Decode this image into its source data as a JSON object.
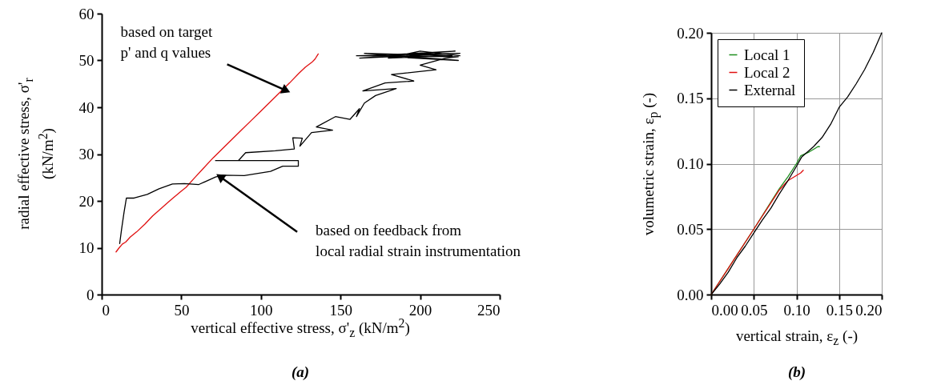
{
  "chart_data": [
    {
      "type": "line",
      "title": "(a)",
      "xlabel": "vertical effective stress, σ'$_{z}$ (kN/m$^{2}$)",
      "ylabel": "radial effective stress, σ'$_{r}$ (kN/m$^{2}$)",
      "xlim": [
        0,
        250
      ],
      "xticks": [
        0,
        50,
        100,
        150,
        200,
        250
      ],
      "ylim": [
        0,
        60
      ],
      "yticks": [
        0,
        10,
        20,
        30,
        40,
        50,
        60
      ],
      "grid": false,
      "legend": false,
      "series": [
        {
          "color": "#e01010",
          "x": [
            9,
            11,
            13,
            15,
            18,
            22,
            27,
            32,
            38,
            44,
            50,
            53,
            58,
            64,
            70,
            76,
            82,
            88,
            94,
            100,
            106,
            112,
            118,
            124,
            128,
            132,
            134,
            136
          ],
          "values": [
            9.1,
            10,
            10.8,
            11.2,
            12.3,
            13.4,
            15,
            16.8,
            18.6,
            20.4,
            22.1,
            22.9,
            24.8,
            27,
            29.2,
            31.2,
            33.2,
            35.2,
            37.2,
            39.2,
            41.2,
            43.2,
            45.2,
            47.3,
            48.6,
            49.6,
            50.3,
            51.4
          ]
        },
        {
          "color": "#000000",
          "x": [
            11.3,
            12.5,
            14,
            15.5,
            20.3,
            28.6,
            36,
            44.4,
            52,
            61,
            71.5,
            76,
            89.5,
            106,
            113.7,
            123.5,
            123.5,
            71.5,
            85.8,
            90.4,
            109,
            121,
            120,
            126,
            124.5,
            131.8,
            145,
            134.8,
            146.8,
            155.9,
            161.9,
            160,
            165,
            172,
            185,
            164,
            178,
            196,
            182,
            210,
            200,
            216,
            224,
            160,
            225,
            162,
            222,
            170,
            224,
            165,
            220,
            180,
            200,
            225
          ],
          "values": [
            10.9,
            14,
            17.5,
            20.6,
            20.6,
            21.4,
            22.6,
            23.6,
            23.7,
            23.5,
            25.1,
            25.5,
            25.4,
            26.3,
            27.4,
            27.4,
            28.6,
            28.6,
            28.6,
            30.3,
            30.7,
            31.1,
            33.5,
            33.4,
            31.7,
            34.6,
            35.1,
            35.8,
            38,
            37.4,
            39.7,
            38,
            40.9,
            42.5,
            44,
            43.5,
            45.2,
            45.6,
            47,
            48,
            49,
            50.5,
            50.8,
            51,
            51.5,
            50.5,
            52,
            51,
            50,
            51.5,
            51,
            50.5,
            52,
            51
          ]
        }
      ],
      "annotations": [
        {
          "text": "based on target\np' and q values",
          "x": 115,
          "y": 43.7
        },
        {
          "text": "based on feedback from\nlocal radial strain instrumentation",
          "x": 75,
          "y": 25
        }
      ]
    },
    {
      "type": "line",
      "title": "(b)",
      "xlabel": "vertical strain, ε$_{z}$ (-)",
      "ylabel": "volumetric strain, ε$_{p}$ (-)",
      "xlim": [
        0,
        0.2
      ],
      "xticks": [
        {
          "value": 0,
          "label": "0.00"
        },
        {
          "value": 0.05,
          "label": "0.05"
        },
        {
          "value": 0.1,
          "label": "0.10"
        },
        {
          "value": 0.15,
          "label": "0.15"
        },
        {
          "value": 0.2,
          "label": "0.20"
        }
      ],
      "ylim": [
        0,
        0.2
      ],
      "yticks": [
        {
          "value": 0,
          "label": "0.00"
        },
        {
          "value": 0.05,
          "label": "0.05"
        },
        {
          "value": 0.1,
          "label": "0.10"
        },
        {
          "value": 0.15,
          "label": "0.15"
        },
        {
          "value": 0.2,
          "label": "0.20"
        }
      ],
      "grid": true,
      "legend": "top left",
      "series": [
        {
          "name": "Local 1",
          "color": "#1f8f1f",
          "x": [
            0,
            0.02,
            0.05,
            0.08,
            0.09,
            0.1,
            0.105,
            0.115,
            0.125,
            0.127
          ],
          "values": [
            0,
            0.02,
            0.05,
            0.081,
            0.09,
            0.1,
            0.106,
            0.109,
            0.113,
            0.113
          ]
        },
        {
          "name": "Local 2",
          "color": "#e01010",
          "x": [
            0,
            0.02,
            0.05,
            0.08,
            0.09,
            0.1,
            0.105,
            0.108
          ],
          "values": [
            0,
            0.02,
            0.05,
            0.08,
            0.087,
            0.091,
            0.093,
            0.095
          ]
        },
        {
          "name": "External",
          "color": "#000000",
          "x": [
            0,
            0.01,
            0.02,
            0.03,
            0.04,
            0.05,
            0.06,
            0.07,
            0.08,
            0.09,
            0.1,
            0.106,
            0.12,
            0.13,
            0.14,
            0.15,
            0.16,
            0.17,
            0.18,
            0.19,
            0.2
          ],
          "values": [
            0,
            0.008,
            0.017,
            0.028,
            0.037,
            0.047,
            0.057,
            0.066,
            0.077,
            0.087,
            0.098,
            0.105,
            0.113,
            0.12,
            0.13,
            0.143,
            0.151,
            0.161,
            0.172,
            0.185,
            0.2
          ]
        }
      ]
    }
  ]
}
